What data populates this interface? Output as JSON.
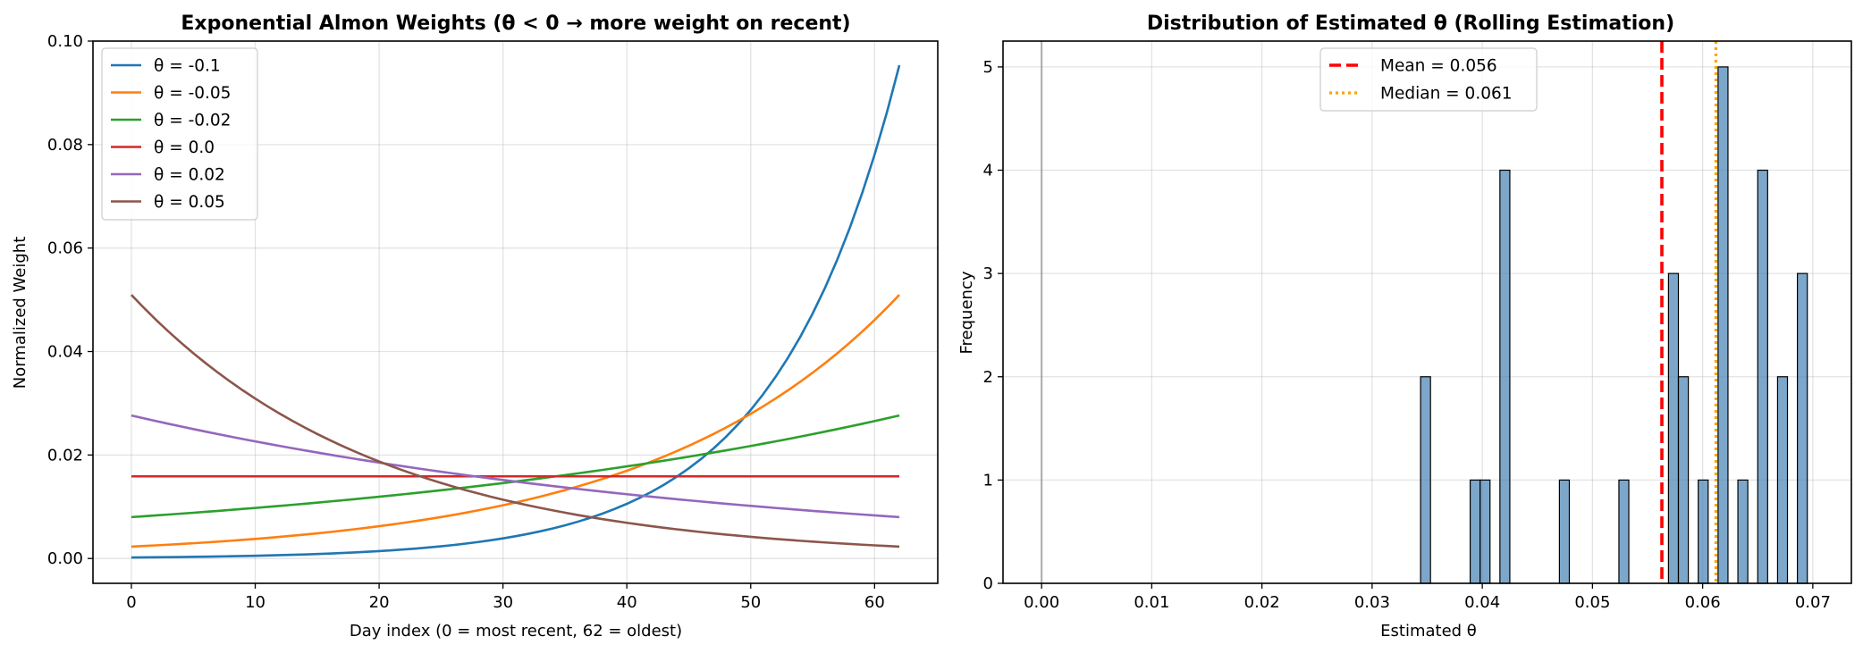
{
  "chart_data": [
    {
      "type": "line",
      "title": "Exponential Almon Weights (θ < 0 → more weight on recent)",
      "xlabel": "Day index (0 = most recent, 62 = oldest)",
      "ylabel": "Normalized Weight",
      "xlim": [
        -3.1,
        65.1
      ],
      "ylim": [
        -0.0048,
        0.1
      ],
      "x_ticks": [
        0,
        10,
        20,
        30,
        40,
        50,
        60
      ],
      "y_ticks": [
        0.0,
        0.02,
        0.04,
        0.06,
        0.08,
        0.1
      ],
      "x_tick_labels": [
        "0",
        "10",
        "20",
        "30",
        "40",
        "50",
        "60"
      ],
      "y_tick_labels": [
        "0.00",
        "0.02",
        "0.04",
        "0.06",
        "0.08",
        "0.10"
      ],
      "grid": true,
      "legend_position": "upper left",
      "x_range": [
        0,
        62
      ],
      "series": [
        {
          "name": "θ = -0.1",
          "theta": -0.1,
          "color": "#1f77b4"
        },
        {
          "name": "θ = -0.05",
          "theta": -0.05,
          "color": "#ff7f0e"
        },
        {
          "name": "θ = -0.02",
          "theta": -0.02,
          "color": "#2ca02c"
        },
        {
          "name": "θ = 0.0",
          "theta": 0.0,
          "color": "#d62728"
        },
        {
          "name": "θ = 0.02",
          "theta": 0.02,
          "color": "#9467bd"
        },
        {
          "name": "θ = 0.05",
          "theta": 0.05,
          "color": "#8c564b"
        }
      ]
    },
    {
      "type": "bar",
      "title": "Distribution of Estimated θ (Rolling Estimation)",
      "xlabel": "Estimated θ",
      "ylabel": "Frequency",
      "xlim": [
        -0.0035,
        0.0735
      ],
      "ylim": [
        0,
        5.25
      ],
      "x_ticks": [
        0.0,
        0.01,
        0.02,
        0.03,
        0.04,
        0.05,
        0.06,
        0.07
      ],
      "y_ticks": [
        0,
        1,
        2,
        3,
        4,
        5
      ],
      "x_tick_labels": [
        "0.00",
        "0.01",
        "0.02",
        "0.03",
        "0.04",
        "0.05",
        "0.06",
        "0.07"
      ],
      "y_tick_labels": [
        "0",
        "1",
        "2",
        "3",
        "4",
        "5"
      ],
      "grid": true,
      "legend_position": "upper center",
      "bin_edges": [
        0.0344,
        0.0389,
        0.0434,
        0.0479,
        0.0524,
        0.0569,
        0.0614,
        0.0659,
        0.0704
      ],
      "bin_width": 0.0009,
      "bins": [
        {
          "x": 0.0344,
          "count": 2
        },
        {
          "x": 0.0389,
          "count": 1
        },
        {
          "x": 0.0398,
          "count": 1
        },
        {
          "x": 0.0416,
          "count": 4
        },
        {
          "x": 0.047,
          "count": 1
        },
        {
          "x": 0.0524,
          "count": 1
        },
        {
          "x": 0.0569,
          "count": 3
        },
        {
          "x": 0.0578,
          "count": 2
        },
        {
          "x": 0.0596,
          "count": 1
        },
        {
          "x": 0.0614,
          "count": 5
        },
        {
          "x": 0.0632,
          "count": 1
        },
        {
          "x": 0.065,
          "count": 4
        },
        {
          "x": 0.0668,
          "count": 2
        },
        {
          "x": 0.0686,
          "count": 3
        }
      ],
      "bar_color": "#4682b4",
      "reference_line_x": 0.0,
      "mean_line": {
        "label": "Mean = 0.056",
        "value": 0.0563,
        "color": "#ff0000"
      },
      "median_line": {
        "label": "Median = 0.061",
        "value": 0.0612,
        "color": "#ffa500"
      }
    }
  ]
}
